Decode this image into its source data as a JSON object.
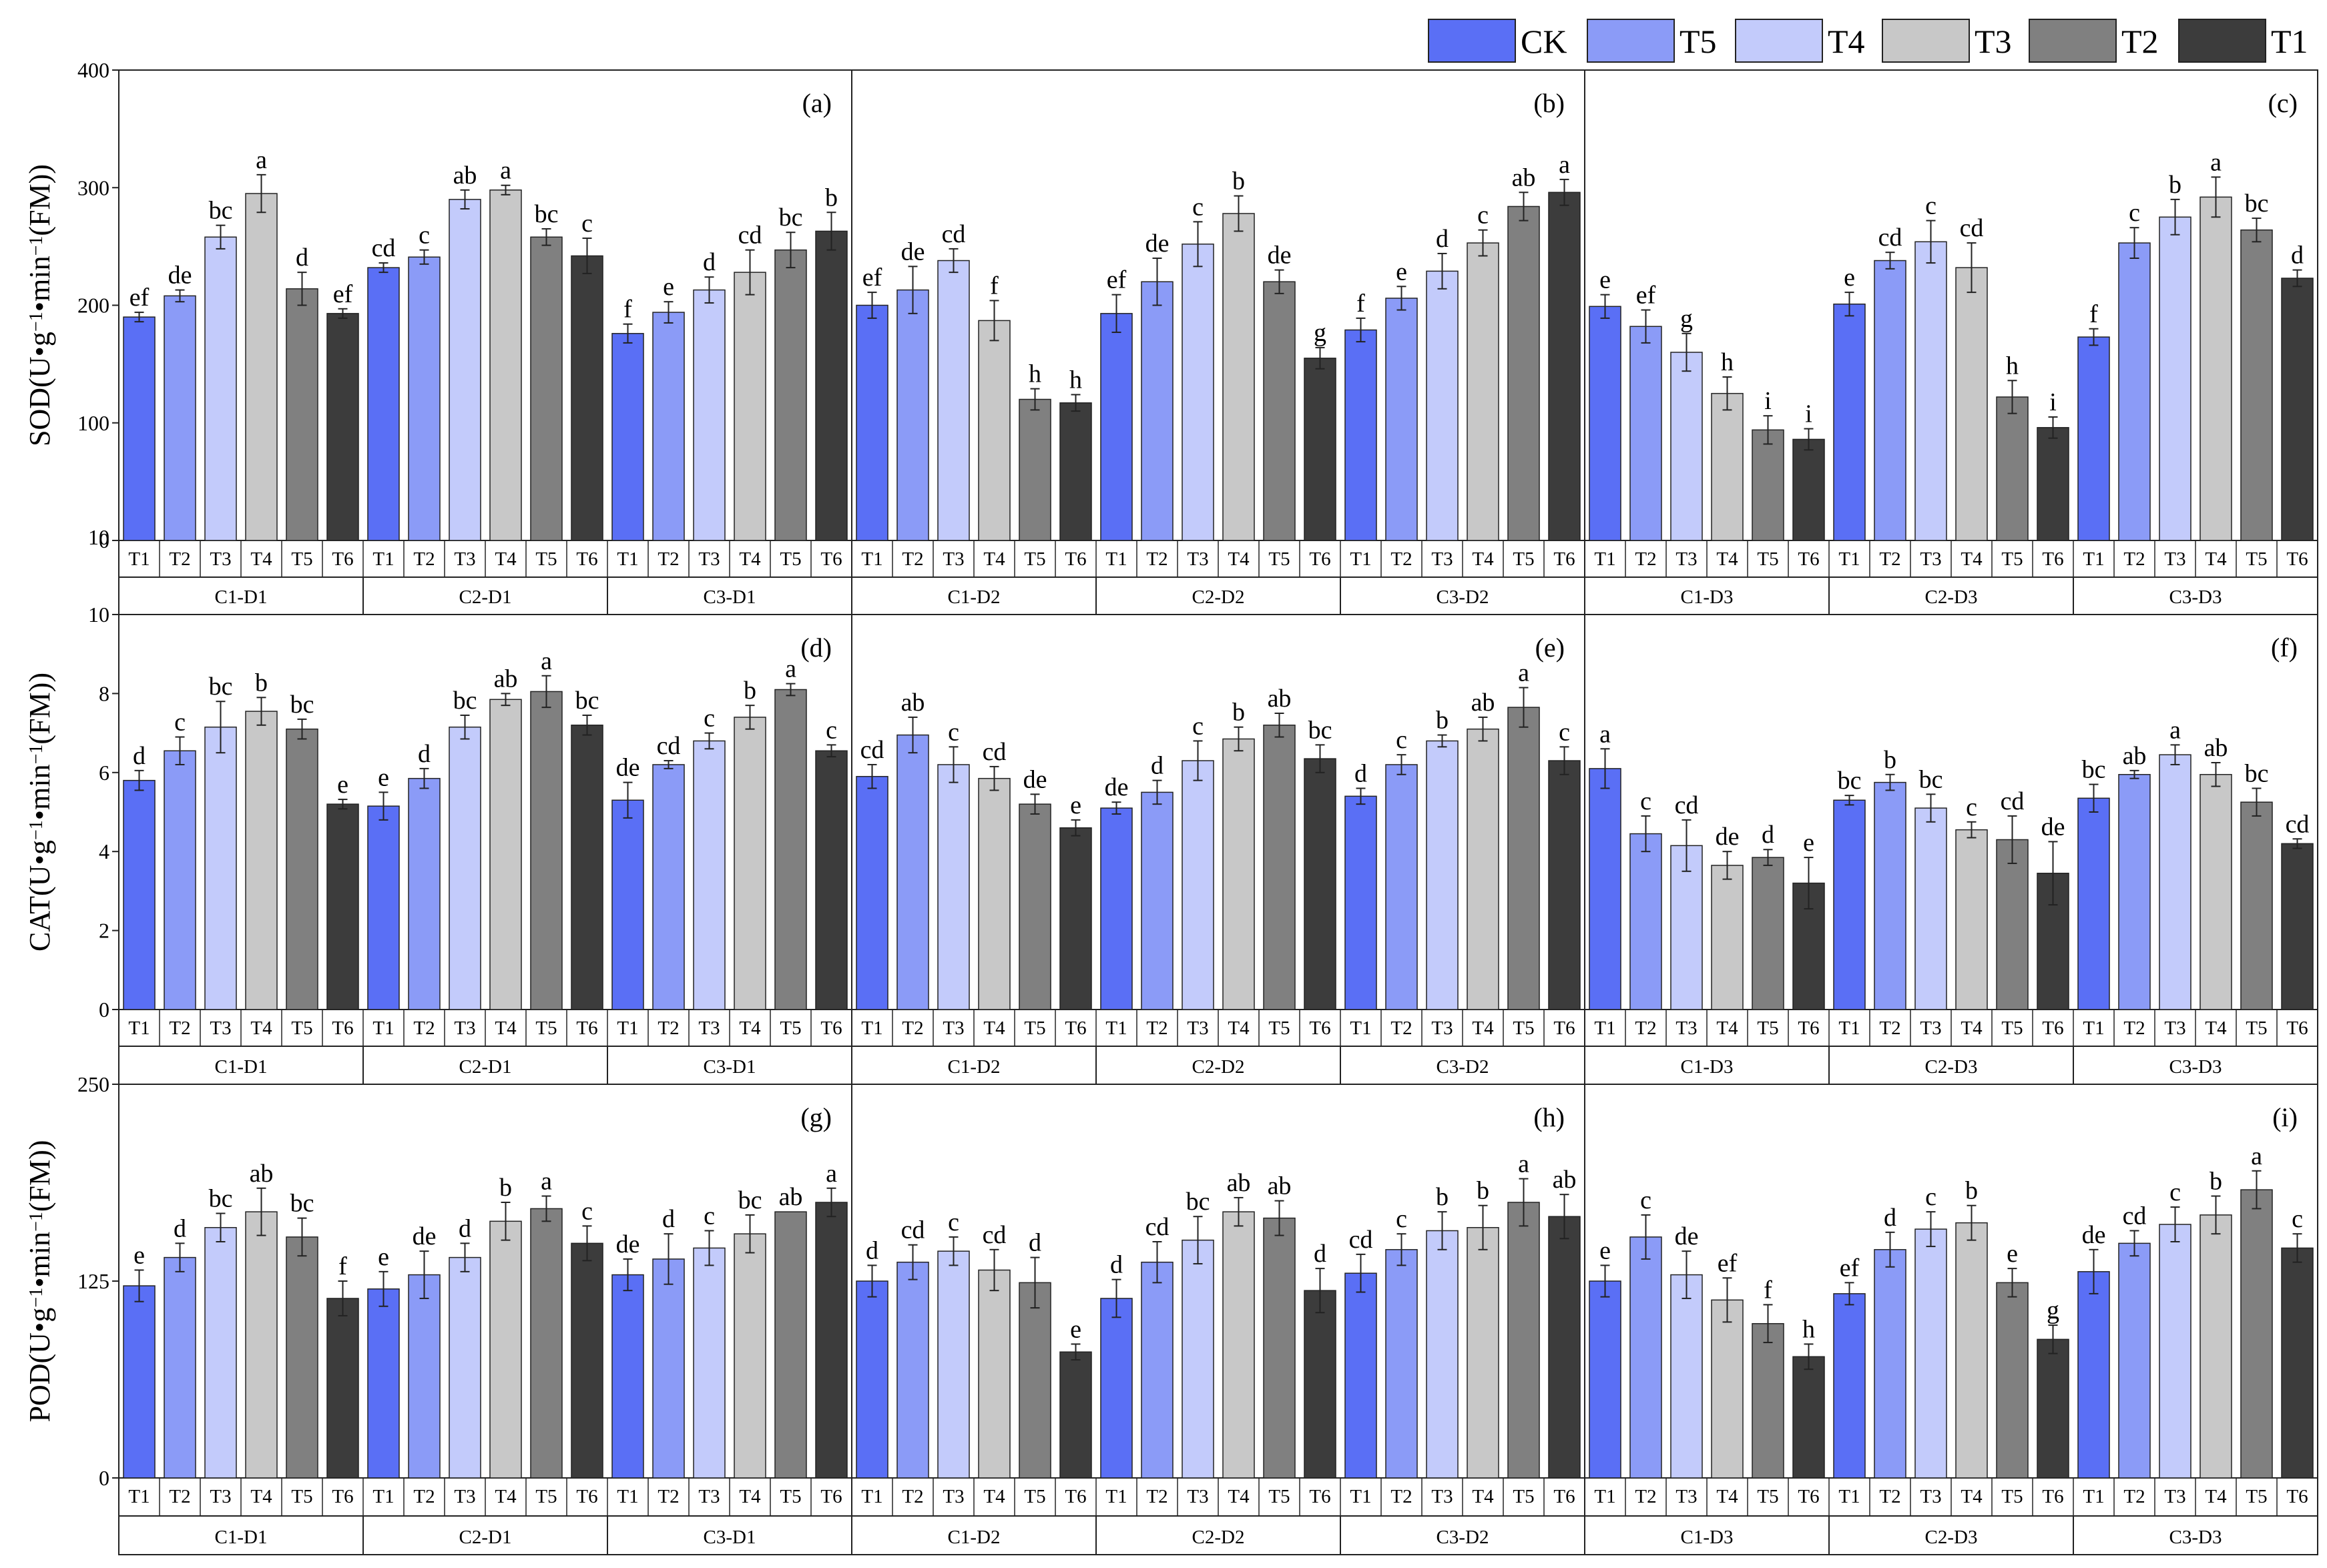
{
  "legend": [
    {
      "label": "CK",
      "color": "#5a6ff5"
    },
    {
      "label": "T5",
      "color": "#8b9bf7"
    },
    {
      "label": "T4",
      "color": "#c3cbfb"
    },
    {
      "label": "T3",
      "color": "#c8c8c8"
    },
    {
      "label": "T2",
      "color": "#808080"
    },
    {
      "label": "T1",
      "color": "#3c3c3c"
    }
  ],
  "chart_data": [
    {
      "type": "bar",
      "metric": "SOD",
      "ylabel_parts": [
        "SOD(U•g",
        "−1",
        "•min",
        "−1",
        "(FM))"
      ],
      "ylim": [
        0,
        400
      ],
      "yticks": [
        "0",
        "100",
        "200",
        "300",
        "400"
      ],
      "extra_ytick": "10",
      "categories": [
        "T1",
        "T2",
        "T3",
        "T4",
        "T5",
        "T6"
      ],
      "panels": [
        {
          "label": "(a)",
          "groups": [
            {
              "name": "C1-D1",
              "values": [
                190,
                208,
                258,
                295,
                214,
                193
              ],
              "errors": [
                4,
                5,
                10,
                16,
                14,
                4
              ],
              "sig": [
                "ef",
                "de",
                "bc",
                "a",
                "d",
                "ef"
              ]
            },
            {
              "name": "C2-D1",
              "values": [
                232,
                241,
                290,
                298,
                258,
                242
              ],
              "errors": [
                4,
                6,
                8,
                4,
                7,
                15
              ],
              "sig": [
                "cd",
                "c",
                "ab",
                "a",
                "bc",
                "c"
              ]
            },
            {
              "name": "C3-D1",
              "values": [
                176,
                194,
                213,
                228,
                247,
                263
              ],
              "errors": [
                8,
                9,
                11,
                19,
                15,
                16
              ],
              "sig": [
                "f",
                "e",
                "d",
                "cd",
                "bc",
                "b"
              ]
            }
          ]
        },
        {
          "label": "(b)",
          "groups": [
            {
              "name": "C1-D2",
              "values": [
                200,
                213,
                238,
                187,
                120,
                117
              ],
              "errors": [
                11,
                20,
                10,
                17,
                9,
                7
              ],
              "sig": [
                "ef",
                "de",
                "cd",
                "f",
                "h",
                "h"
              ]
            },
            {
              "name": "C2-D2",
              "values": [
                193,
                220,
                252,
                278,
                220,
                155
              ],
              "errors": [
                16,
                20,
                19,
                15,
                10,
                9
              ],
              "sig": [
                "ef",
                "de",
                "c",
                "b",
                "de",
                "g"
              ]
            },
            {
              "name": "C3-D2",
              "values": [
                179,
                206,
                229,
                253,
                284,
                296
              ],
              "errors": [
                10,
                10,
                15,
                11,
                12,
                11
              ],
              "sig": [
                "f",
                "e",
                "d",
                "c",
                "ab",
                "a"
              ]
            }
          ]
        },
        {
          "label": "(c)",
          "groups": [
            {
              "name": "C1-D3",
              "values": [
                199,
                182,
                160,
                125,
                94,
                86
              ],
              "errors": [
                10,
                14,
                16,
                14,
                12,
                9
              ],
              "sig": [
                "e",
                "ef",
                "g",
                "h",
                "i",
                "i"
              ]
            },
            {
              "name": "C2-D3",
              "values": [
                201,
                238,
                254,
                232,
                122,
                96
              ],
              "errors": [
                10,
                7,
                18,
                21,
                14,
                9
              ],
              "sig": [
                "e",
                "cd",
                "c",
                "cd",
                "h",
                "i"
              ]
            },
            {
              "name": "C3-D3",
              "values": [
                173,
                253,
                275,
                292,
                264,
                223
              ],
              "errors": [
                7,
                13,
                15,
                17,
                10,
                7
              ],
              "sig": [
                "f",
                "c",
                "b",
                "a",
                "bc",
                "d"
              ]
            }
          ]
        }
      ]
    },
    {
      "type": "bar",
      "metric": "CAT",
      "ylabel_parts": [
        "CAT(U•g",
        "−1",
        "•min",
        "−1",
        "(FM))"
      ],
      "ylim": [
        0,
        10
      ],
      "yticks": [
        "0",
        "2",
        "4",
        "6",
        "8",
        "10"
      ],
      "categories": [
        "T1",
        "T2",
        "T3",
        "T4",
        "T5",
        "T6"
      ],
      "panels": [
        {
          "label": "(d)",
          "groups": [
            {
              "name": "C1-D1",
              "values": [
                5.8,
                6.55,
                7.15,
                7.55,
                7.1,
                5.2
              ],
              "errors": [
                0.25,
                0.35,
                0.65,
                0.35,
                0.25,
                0.12
              ],
              "sig": [
                "d",
                "c",
                "bc",
                "b",
                "bc",
                "e"
              ]
            },
            {
              "name": "C2-D1",
              "values": [
                5.15,
                5.85,
                7.15,
                7.85,
                8.05,
                7.2
              ],
              "errors": [
                0.35,
                0.25,
                0.3,
                0.15,
                0.4,
                0.25
              ],
              "sig": [
                "e",
                "d",
                "bc",
                "ab",
                "a",
                "bc"
              ]
            },
            {
              "name": "C3-D1",
              "values": [
                5.3,
                6.2,
                6.8,
                7.4,
                8.1,
                6.55
              ],
              "errors": [
                0.45,
                0.1,
                0.2,
                0.3,
                0.15,
                0.15
              ],
              "sig": [
                "de",
                "cd",
                "c",
                "b",
                "a",
                "c"
              ]
            }
          ]
        },
        {
          "label": "(e)",
          "groups": [
            {
              "name": "C1-D2",
              "values": [
                5.9,
                6.95,
                6.2,
                5.85,
                5.2,
                4.6
              ],
              "errors": [
                0.3,
                0.45,
                0.45,
                0.3,
                0.25,
                0.2
              ],
              "sig": [
                "cd",
                "ab",
                "c",
                "cd",
                "de",
                "e"
              ]
            },
            {
              "name": "C2-D2",
              "values": [
                5.1,
                5.5,
                6.3,
                6.85,
                7.2,
                6.35
              ],
              "errors": [
                0.15,
                0.3,
                0.5,
                0.3,
                0.3,
                0.35
              ],
              "sig": [
                "de",
                "d",
                "c",
                "b",
                "ab",
                "bc"
              ]
            },
            {
              "name": "C3-D2",
              "values": [
                5.4,
                6.2,
                6.8,
                7.1,
                7.65,
                6.3
              ],
              "errors": [
                0.2,
                0.25,
                0.15,
                0.3,
                0.5,
                0.35
              ],
              "sig": [
                "d",
                "c",
                "b",
                "ab",
                "a",
                "c"
              ]
            }
          ]
        },
        {
          "label": "(f)",
          "groups": [
            {
              "name": "C1-D3",
              "values": [
                6.1,
                4.45,
                4.15,
                3.65,
                3.85,
                3.2
              ],
              "errors": [
                0.5,
                0.45,
                0.65,
                0.35,
                0.2,
                0.65
              ],
              "sig": [
                "a",
                "c",
                "cd",
                "de",
                "d",
                "e"
              ]
            },
            {
              "name": "C2-D3",
              "values": [
                5.3,
                5.75,
                5.1,
                4.55,
                4.3,
                3.45
              ],
              "errors": [
                0.12,
                0.2,
                0.35,
                0.2,
                0.6,
                0.8
              ],
              "sig": [
                "bc",
                "b",
                "bc",
                "c",
                "cd",
                "de"
              ]
            },
            {
              "name": "C3-D3",
              "values": [
                5.35,
                5.95,
                6.45,
                5.95,
                5.25,
                4.2
              ],
              "errors": [
                0.35,
                0.1,
                0.25,
                0.3,
                0.35,
                0.12
              ],
              "sig": [
                "bc",
                "ab",
                "a",
                "ab",
                "bc",
                "cd"
              ]
            }
          ]
        }
      ]
    },
    {
      "type": "bar",
      "metric": "POD",
      "ylabel_parts": [
        "POD(U•g",
        "−1",
        "•min",
        "−1",
        "(FM))"
      ],
      "ylim": [
        0,
        250
      ],
      "yticks": [
        "0",
        "125",
        "250"
      ],
      "categories": [
        "T1",
        "T2",
        "T3",
        "T4",
        "T5",
        "T6"
      ],
      "panels": [
        {
          "label": "(g)",
          "groups": [
            {
              "name": "C1-D1",
              "values": [
                122,
                140,
                159,
                169,
                153,
                114
              ],
              "errors": [
                10,
                9,
                9,
                15,
                12,
                11
              ],
              "sig": [
                "e",
                "d",
                "bc",
                "ab",
                "bc",
                "f"
              ]
            },
            {
              "name": "C2-D1",
              "values": [
                120,
                129,
                140,
                163,
                171,
                149
              ],
              "errors": [
                11,
                15,
                9,
                12,
                8,
                11
              ],
              "sig": [
                "e",
                "de",
                "d",
                "b",
                "a",
                "c"
              ]
            },
            {
              "name": "C3-D1",
              "values": [
                129,
                139,
                146,
                155,
                169,
                175
              ],
              "errors": [
                10,
                16,
                11,
                12,
                0,
                9
              ],
              "sig": [
                "de",
                "d",
                "c",
                "bc",
                "ab",
                "a"
              ]
            }
          ]
        },
        {
          "label": "(h)",
          "groups": [
            {
              "name": "C1-D2",
              "values": [
                125,
                137,
                144,
                132,
                124,
                80
              ],
              "errors": [
                10,
                11,
                9,
                13,
                16,
                5
              ],
              "sig": [
                "d",
                "cd",
                "c",
                "cd",
                "d",
                "e"
              ]
            },
            {
              "name": "C2-D2",
              "values": [
                114,
                137,
                151,
                169,
                165,
                119
              ],
              "errors": [
                12,
                13,
                15,
                9,
                11,
                14
              ],
              "sig": [
                "d",
                "cd",
                "bc",
                "ab",
                "ab",
                "d"
              ]
            },
            {
              "name": "C3-D2",
              "values": [
                130,
                145,
                157,
                159,
                175,
                166
              ],
              "errors": [
                12,
                10,
                12,
                14,
                15,
                14
              ],
              "sig": [
                "cd",
                "c",
                "b",
                "b",
                "a",
                "ab"
              ]
            }
          ]
        },
        {
          "label": "(i)",
          "groups": [
            {
              "name": "C1-D3",
              "values": [
                125,
                153,
                129,
                113,
                98,
                77
              ],
              "errors": [
                10,
                14,
                15,
                14,
                12,
                8
              ],
              "sig": [
                "e",
                "c",
                "de",
                "ef",
                "f",
                "h"
              ]
            },
            {
              "name": "C2-D3",
              "values": [
                117,
                145,
                158,
                162,
                124,
                88
              ],
              "errors": [
                7,
                11,
                11,
                11,
                9,
                9
              ],
              "sig": [
                "ef",
                "d",
                "c",
                "b",
                "e",
                "g"
              ]
            },
            {
              "name": "C3-D3",
              "values": [
                131,
                149,
                161,
                167,
                183,
                146
              ],
              "errors": [
                14,
                8,
                11,
                12,
                12,
                9
              ],
              "sig": [
                "de",
                "cd",
                "c",
                "b",
                "a",
                "c"
              ]
            }
          ]
        }
      ]
    }
  ]
}
